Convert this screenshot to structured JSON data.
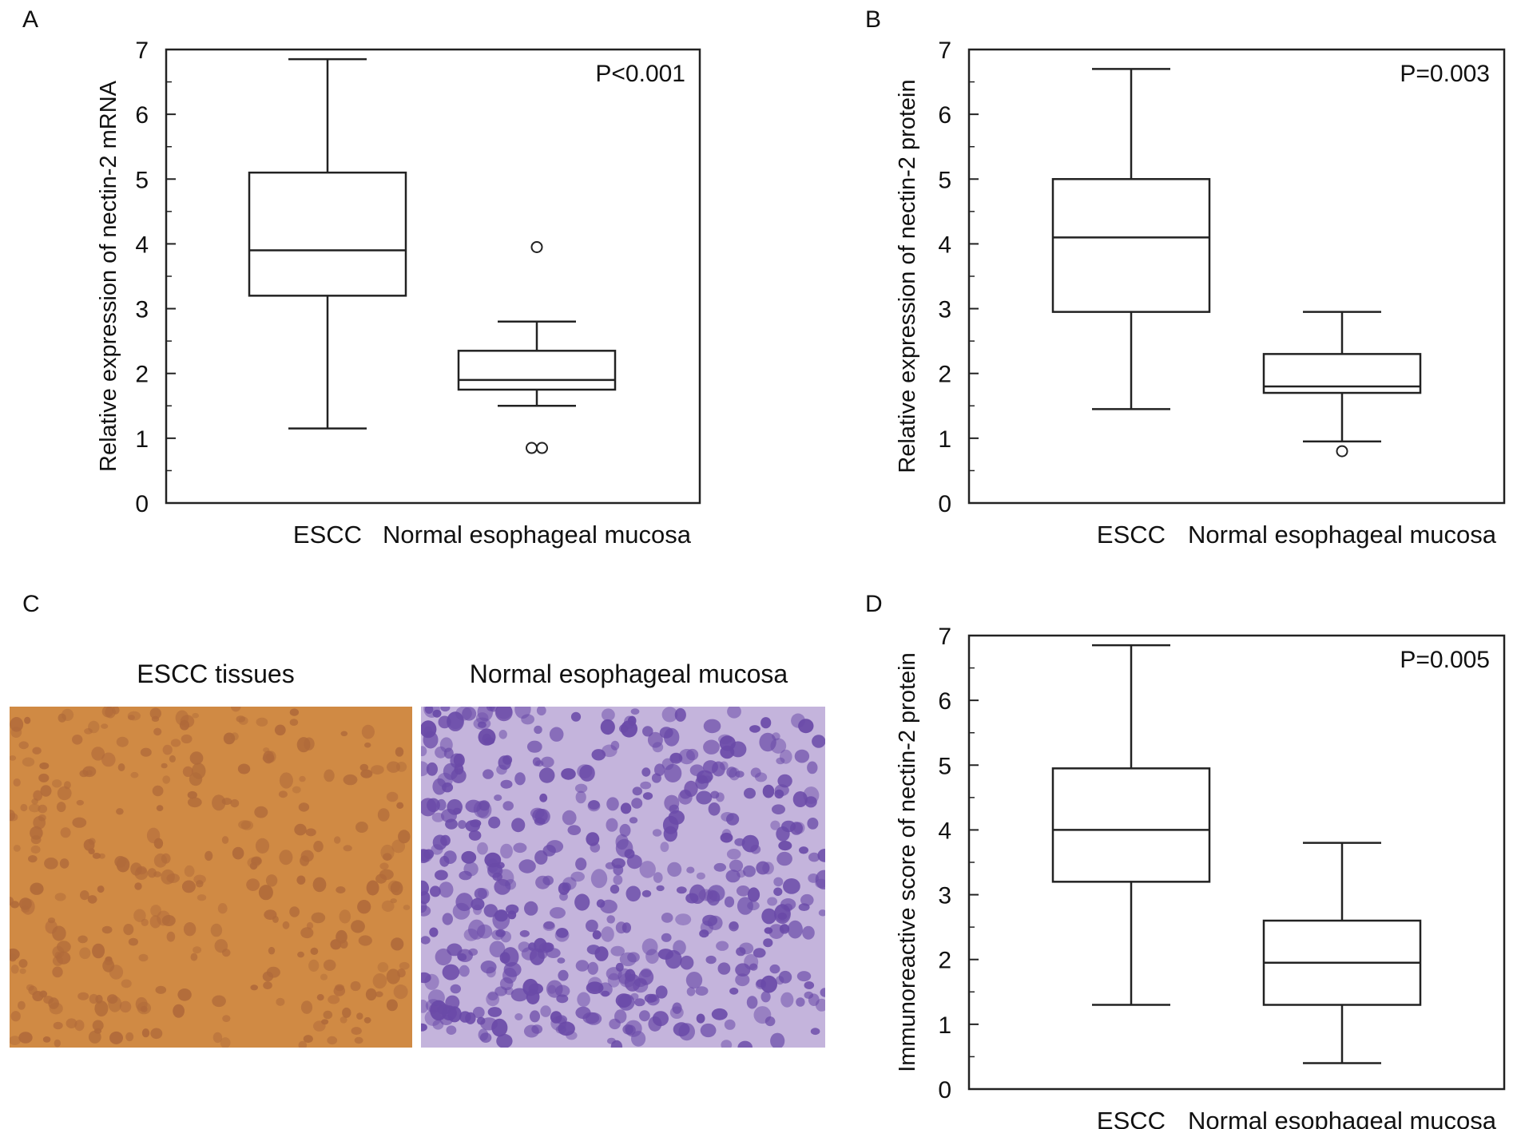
{
  "figure": {
    "panels": {
      "A": {
        "label": "A"
      },
      "B": {
        "label": "B"
      },
      "C": {
        "label": "C",
        "images": [
          {
            "caption": "ESCC tissues",
            "tint": "#d08a44"
          },
          {
            "caption": "Normal esophageal mucosa",
            "tint": "#6a4aa8"
          }
        ]
      },
      "D": {
        "label": "D"
      }
    }
  },
  "chart_data": [
    {
      "panel": "A",
      "type": "box",
      "ylabel": "Relative expression of nectin-2 mRNA",
      "xlabel": "",
      "annotation": "P<0.001",
      "ylim": [
        0,
        7
      ],
      "yticks": [
        0,
        1,
        2,
        3,
        4,
        5,
        6,
        7
      ],
      "categories": [
        "ESCC",
        "Normal esophageal mucosa"
      ],
      "boxes": [
        {
          "category": "ESCC",
          "whisker_low": 1.15,
          "q1": 3.2,
          "median": 3.9,
          "q3": 5.1,
          "whisker_high": 6.85,
          "outliers": []
        },
        {
          "category": "Normal esophageal mucosa",
          "whisker_low": 1.5,
          "q1": 1.75,
          "median": 1.9,
          "q3": 2.35,
          "whisker_high": 2.8,
          "outliers": [
            3.95,
            0.85,
            0.85
          ]
        }
      ]
    },
    {
      "panel": "B",
      "type": "box",
      "ylabel": "Relative expression of nectin-2 protein",
      "xlabel": "",
      "annotation": "P=0.003",
      "ylim": [
        0,
        7
      ],
      "yticks": [
        0,
        1,
        2,
        3,
        4,
        5,
        6,
        7
      ],
      "categories": [
        "ESCC",
        "Normal esophageal mucosa"
      ],
      "boxes": [
        {
          "category": "ESCC",
          "whisker_low": 1.45,
          "q1": 2.95,
          "median": 4.1,
          "q3": 5.0,
          "whisker_high": 6.7,
          "outliers": []
        },
        {
          "category": "Normal esophageal mucosa",
          "whisker_low": 0.95,
          "q1": 1.7,
          "median": 1.8,
          "q3": 2.3,
          "whisker_high": 2.95,
          "outliers": [
            0.8
          ]
        }
      ]
    },
    {
      "panel": "D",
      "type": "box",
      "ylabel": "Immunoreactive score of nectin-2 protein",
      "xlabel": "",
      "annotation": "P=0.005",
      "ylim": [
        0,
        7
      ],
      "yticks": [
        0,
        1,
        2,
        3,
        4,
        5,
        6,
        7
      ],
      "categories": [
        "ESCC",
        "Normal esophageal mucosa"
      ],
      "boxes": [
        {
          "category": "ESCC",
          "whisker_low": 1.3,
          "q1": 3.2,
          "median": 4.0,
          "q3": 4.95,
          "whisker_high": 6.85,
          "outliers": []
        },
        {
          "category": "Normal esophageal mucosa",
          "whisker_low": 0.4,
          "q1": 1.3,
          "median": 1.95,
          "q3": 2.6,
          "whisker_high": 3.8,
          "outliers": []
        }
      ]
    }
  ]
}
